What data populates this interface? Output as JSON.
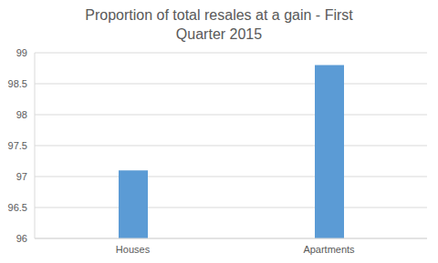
{
  "chart_data": {
    "type": "bar",
    "title": "Proportion of total resales at a gain - First Quarter 2015",
    "categories": [
      "Houses",
      "Apartments"
    ],
    "values": [
      97.1,
      98.8
    ],
    "color": "#5b9bd5",
    "ylim": [
      96,
      99
    ],
    "yticks": [
      96,
      96.5,
      97,
      97.5,
      98,
      98.5,
      99
    ],
    "grid": true
  }
}
